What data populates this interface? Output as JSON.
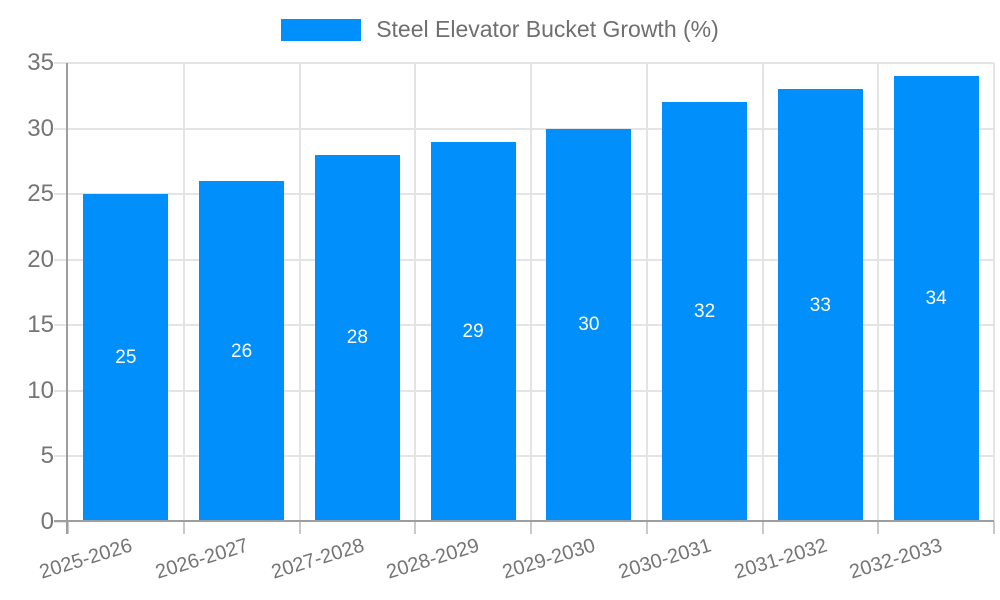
{
  "legend": {
    "label": "Steel Elevator Bucket Growth (%)"
  },
  "chart_data": {
    "type": "bar",
    "title": "Steel Elevator Bucket Growth (%)",
    "categories": [
      "2025-2026",
      "2026-2027",
      "2027-2028",
      "2028-2029",
      "2029-2030",
      "2030-2031",
      "2031-2032",
      "2032-2033"
    ],
    "values": [
      25,
      26,
      28,
      29,
      30,
      32,
      33,
      34
    ],
    "bar_labels": [
      "25",
      "26",
      "28",
      "29",
      "30",
      "32",
      "33",
      "34"
    ],
    "xlabel": "",
    "ylabel": "",
    "ylim": [
      0,
      35
    ],
    "ytick_interval": 5,
    "ytick_labels": [
      "0",
      "5",
      "10",
      "15",
      "20",
      "25",
      "30",
      "35"
    ],
    "grid": true,
    "legend_position": "top",
    "colors": {
      "bar": "#008FFB",
      "bar_label": "#ffffff",
      "grid": "#e4e4e4",
      "axis_line": "#9e9e9e",
      "tick": "#c9c9c9",
      "axis_label": "#757575",
      "legend_text": "#6f6f6f",
      "background": "#ffffff"
    }
  }
}
